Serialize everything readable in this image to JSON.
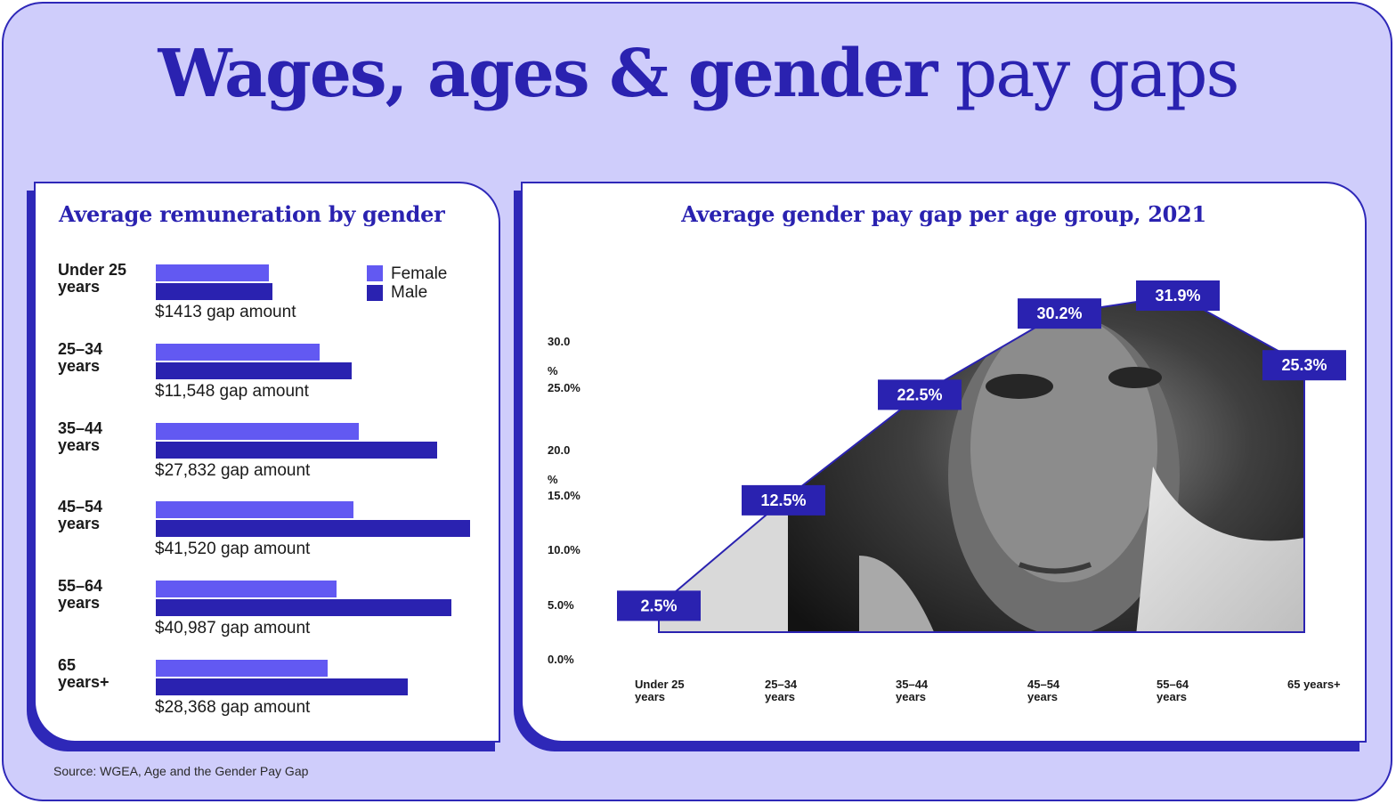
{
  "title": {
    "bold": "Wages, ages & gender",
    "light": "pay gaps"
  },
  "source": "Source: WGEA, Age and the Gender Pay Gap",
  "colors": {
    "background": "#cfcdfb",
    "accent": "#2a22b0",
    "female": "#6259f2",
    "male": "#2a22b0",
    "card": "#ffffff"
  },
  "icons": [
    "woman-portrait-photo"
  ],
  "chart_data": [
    {
      "type": "bar",
      "orientation": "horizontal",
      "title": "Average remuneration by gender",
      "categories": [
        "Under 25 years",
        "25–34 years",
        "35–44 years",
        "45–54 years",
        "55–64 years",
        "65 years+"
      ],
      "category_lines": [
        [
          "Under 25",
          "years"
        ],
        [
          "25–34",
          "years"
        ],
        [
          "35–44",
          "years"
        ],
        [
          "45–54",
          "years"
        ],
        [
          "55–64",
          "years"
        ],
        [
          "65",
          "years+"
        ]
      ],
      "legend": {
        "position": "top-right",
        "entries": [
          "Female",
          "Male"
        ]
      },
      "series": [
        {
          "name": "Female",
          "values": [
            40000,
            58000,
            72000,
            70000,
            64000,
            61000
          ]
        },
        {
          "name": "Male",
          "values": [
            41413,
            69548,
            99832,
            111520,
            104987,
            89368
          ]
        }
      ],
      "gap_labels": [
        "$1413 gap amount",
        "$11,548 gap amount",
        "$27,832 gap amount",
        "$41,520 gap amount",
        "$40,987 gap amount",
        "$28,368 gap amount"
      ],
      "xlim": [
        0,
        120000
      ]
    },
    {
      "type": "area",
      "title": "Average gender pay gap per age group, 2021",
      "categories": [
        "Under 25 years",
        "25–34 years",
        "35–44 years",
        "45–54 years",
        "55–64 years",
        "65 years+"
      ],
      "category_lines": [
        [
          "Under 25",
          "years"
        ],
        [
          "25–34",
          "years"
        ],
        [
          "35–44",
          "years"
        ],
        [
          "45–54",
          "years"
        ],
        [
          "55–64",
          "years"
        ],
        [
          "65 years+",
          ""
        ]
      ],
      "values": [
        2.5,
        12.5,
        22.5,
        30.2,
        31.9,
        25.3
      ],
      "data_labels": [
        "2.5%",
        "12.5%",
        "22.5%",
        "30.2%",
        "31.9%",
        "25.3%"
      ],
      "y_ticks": [
        "0.0%",
        "5.0%",
        "10.0%",
        "15.0%",
        "20.0%",
        "25.0%",
        "30.0%"
      ],
      "ylim": [
        0,
        30
      ],
      "grid": false
    }
  ]
}
